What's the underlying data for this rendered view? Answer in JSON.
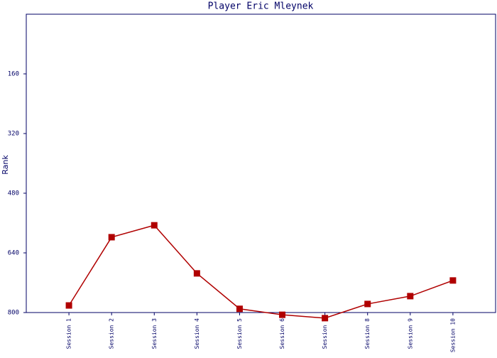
{
  "chart_data": {
    "type": "line",
    "title": "Player Eric Mleynek",
    "y_label": "Rank",
    "categories": [
      "Session 1",
      "Session 2",
      "Session 3",
      "Session 4",
      "Session 5",
      "Session 6",
      "Session 7",
      "Session 8",
      "Session 9",
      "Session 10"
    ],
    "series": [
      {
        "name": "Rank",
        "color": "#b00000",
        "values": [
          781,
          598,
          566,
          695,
          790,
          806,
          815,
          777,
          756,
          714
        ]
      }
    ],
    "ylim": [
      800,
      0
    ],
    "yticks": [
      160,
      320,
      480,
      640,
      800
    ],
    "grid": false
  }
}
